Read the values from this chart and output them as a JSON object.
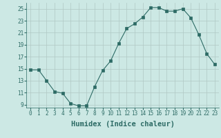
{
  "x": [
    0,
    1,
    2,
    3,
    4,
    5,
    6,
    7,
    8,
    9,
    10,
    11,
    12,
    13,
    14,
    15,
    16,
    17,
    18,
    19,
    20,
    21,
    22,
    23
  ],
  "y": [
    14.8,
    14.8,
    13.0,
    11.2,
    10.9,
    9.2,
    8.8,
    8.8,
    12.0,
    14.7,
    16.3,
    19.2,
    21.7,
    22.5,
    23.6,
    25.2,
    25.2,
    24.6,
    24.6,
    25.0,
    23.5,
    20.7,
    17.5,
    15.7
  ],
  "line_color": "#2d6b65",
  "marker": "s",
  "marker_size": 2.2,
  "bg_color": "#cce8e4",
  "grid_color": "#b0c8c4",
  "xlabel": "Humidex (Indice chaleur)",
  "ylim": [
    8.5,
    26.0
  ],
  "xlim": [
    -0.5,
    23.5
  ],
  "yticks": [
    9,
    11,
    13,
    15,
    17,
    19,
    21,
    23,
    25
  ],
  "xticks": [
    0,
    1,
    2,
    3,
    4,
    5,
    6,
    7,
    8,
    9,
    10,
    11,
    12,
    13,
    14,
    15,
    16,
    17,
    18,
    19,
    20,
    21,
    22,
    23
  ],
  "tick_fontsize": 5.5,
  "xlabel_fontsize": 7.5,
  "text_color": "#2d6b65"
}
